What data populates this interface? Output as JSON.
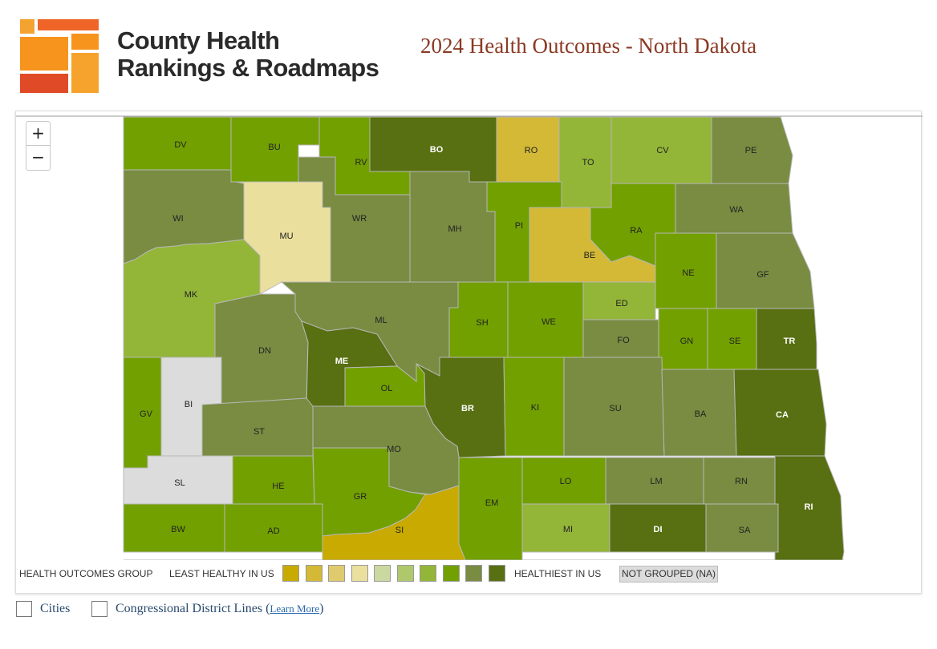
{
  "header": {
    "brand_line1": "County Health",
    "brand_line2": "Rankings & Roadmaps",
    "title": "2024 Health Outcomes - North Dakota"
  },
  "zoom": {
    "in_label": "+",
    "out_label": "−"
  },
  "colors": {
    "g1": "#c8aa00",
    "g2": "#d3b936",
    "g3": "#dfca6e",
    "g4": "#ebdf9e",
    "g5": "#cbd8a0",
    "g6": "#aec86b",
    "g7": "#93b538",
    "g8": "#72a000",
    "g9": "#798c42",
    "g10": "#586f12",
    "na": "#dcdcdc",
    "border": "#b8b8b8"
  },
  "counties": [
    {
      "abbr": "DV",
      "group": "g8"
    },
    {
      "abbr": "BU",
      "group": "g8"
    },
    {
      "abbr": "RV",
      "group": "g8"
    },
    {
      "abbr": "BO",
      "group": "g10"
    },
    {
      "abbr": "RO",
      "group": "g2"
    },
    {
      "abbr": "TO",
      "group": "g7"
    },
    {
      "abbr": "CV",
      "group": "g7"
    },
    {
      "abbr": "PE",
      "group": "g9"
    },
    {
      "abbr": "WI",
      "group": "g9"
    },
    {
      "abbr": "MU",
      "group": "g4"
    },
    {
      "abbr": "WR",
      "group": "g9"
    },
    {
      "abbr": "MH",
      "group": "g9"
    },
    {
      "abbr": "PI",
      "group": "g8"
    },
    {
      "abbr": "RA",
      "group": "g8"
    },
    {
      "abbr": "WA",
      "group": "g9"
    },
    {
      "abbr": "BE",
      "group": "g2"
    },
    {
      "abbr": "NE",
      "group": "g8"
    },
    {
      "abbr": "GF",
      "group": "g9"
    },
    {
      "abbr": "MK",
      "group": "g7"
    },
    {
      "abbr": "ML",
      "group": "g9"
    },
    {
      "abbr": "SH",
      "group": "g8"
    },
    {
      "abbr": "WE",
      "group": "g8"
    },
    {
      "abbr": "ED",
      "group": "g7"
    },
    {
      "abbr": "FO",
      "group": "g9"
    },
    {
      "abbr": "GN",
      "group": "g8"
    },
    {
      "abbr": "SE",
      "group": "g8"
    },
    {
      "abbr": "TR",
      "group": "g10"
    },
    {
      "abbr": "DN",
      "group": "g9"
    },
    {
      "abbr": "ME",
      "group": "g10"
    },
    {
      "abbr": "OL",
      "group": "g8"
    },
    {
      "abbr": "BR",
      "group": "g10"
    },
    {
      "abbr": "KI",
      "group": "g8"
    },
    {
      "abbr": "SU",
      "group": "g9"
    },
    {
      "abbr": "BA",
      "group": "g9"
    },
    {
      "abbr": "CA",
      "group": "g10"
    },
    {
      "abbr": "GV",
      "group": "g8"
    },
    {
      "abbr": "BI",
      "group": "na"
    },
    {
      "abbr": "ST",
      "group": "g9"
    },
    {
      "abbr": "MO",
      "group": "g9"
    },
    {
      "abbr": "SL",
      "group": "na"
    },
    {
      "abbr": "HE",
      "group": "g8"
    },
    {
      "abbr": "GR",
      "group": "g8"
    },
    {
      "abbr": "EM",
      "group": "g8"
    },
    {
      "abbr": "LO",
      "group": "g8"
    },
    {
      "abbr": "LM",
      "group": "g9"
    },
    {
      "abbr": "RN",
      "group": "g9"
    },
    {
      "abbr": "RI",
      "group": "g10"
    },
    {
      "abbr": "BW",
      "group": "g8"
    },
    {
      "abbr": "AD",
      "group": "g8"
    },
    {
      "abbr": "SI",
      "group": "g1"
    },
    {
      "abbr": "MI",
      "group": "g7"
    },
    {
      "abbr": "DI",
      "group": "g10"
    },
    {
      "abbr": "SA",
      "group": "g9"
    }
  ],
  "legend": {
    "title": "HEALTH OUTCOMES GROUP",
    "least": "LEAST HEALTHY IN US",
    "healthiest": "HEALTHIEST IN US",
    "not_grouped": "NOT GROUPED (NA)",
    "swatches": [
      "g1",
      "g2",
      "g3",
      "g4",
      "g5",
      "g6",
      "g7",
      "g8",
      "g9",
      "g10"
    ]
  },
  "options": {
    "cities_label": "Cities",
    "districts_label": "Congressional District Lines (",
    "learn_more": "Learn More",
    "close_paren": ")"
  }
}
